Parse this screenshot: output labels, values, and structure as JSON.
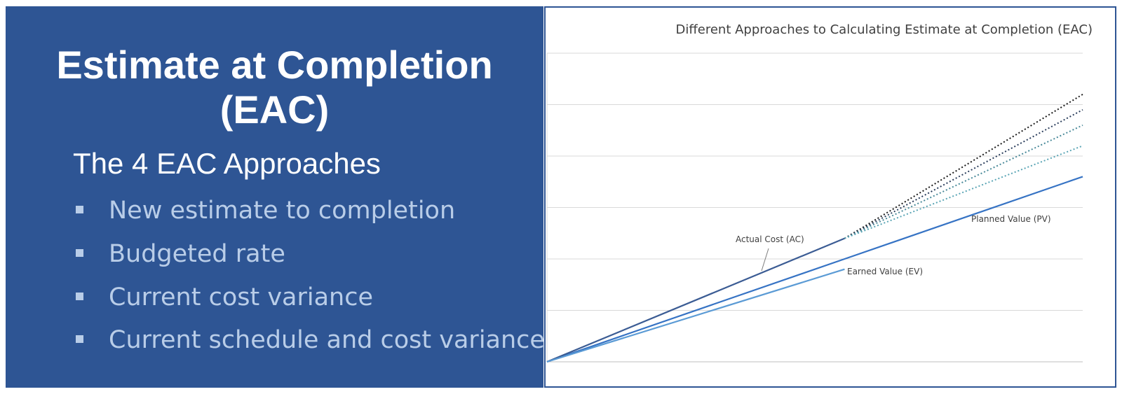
{
  "slide": {
    "title": "Estimate at Completion (EAC)",
    "subtitle": "The 4 EAC Approaches",
    "bullets": [
      "New estimate to completion",
      "Budgeted rate",
      "Current cost variance",
      "Current schedule and cost variance"
    ],
    "background_color": "#2e5594",
    "bullet_color": "#b9cde8"
  },
  "chart_data": {
    "type": "line",
    "title": "Different Approaches to Calculating Estimate at Completion (EAC)",
    "xlabel": "",
    "ylabel": "",
    "grid": true,
    "x": [
      0,
      1,
      1.8
    ],
    "series": [
      {
        "name": "Planned Value (PV)",
        "style": "solid",
        "color": "#3673c4",
        "values": [
          0,
          2.0,
          3.6
        ]
      },
      {
        "name": "Actual Cost (AC)",
        "style": "solid",
        "color": "#3b5c94",
        "values": [
          0,
          2.4,
          null
        ]
      },
      {
        "name": "Earned Value (EV)",
        "style": "solid",
        "color": "#5b9bd5",
        "values": [
          0,
          1.8,
          null
        ]
      },
      {
        "name": "",
        "style": "dotted",
        "color": "#1a1a1a",
        "values": [
          null,
          2.4,
          5.2
        ]
      },
      {
        "name": "",
        "style": "dotted",
        "color": "#2b3e5c",
        "values": [
          null,
          2.4,
          4.9
        ]
      },
      {
        "name": "",
        "style": "dotted",
        "color": "#4a8a9a",
        "values": [
          null,
          2.4,
          4.6
        ]
      },
      {
        "name": "",
        "style": "dotted",
        "color": "#5aa5b5",
        "values": [
          null,
          2.4,
          4.2
        ]
      }
    ],
    "ylim": [
      0,
      6
    ],
    "xlim": [
      0,
      1.8
    ]
  }
}
